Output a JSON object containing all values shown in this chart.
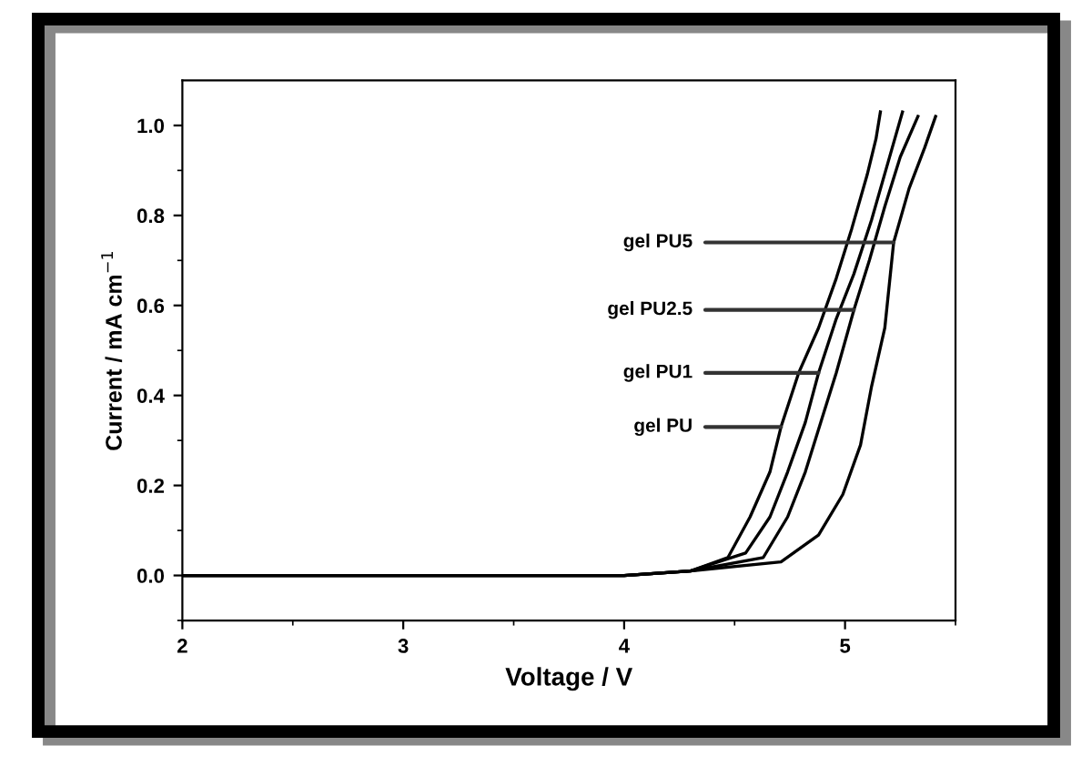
{
  "chart_data": {
    "type": "line",
    "xlabel": "Voltage / V",
    "ylabel": "Current / mA cm$^{−1}$",
    "xlim": [
      2,
      5.5
    ],
    "xticks": [
      2,
      3,
      4,
      5
    ],
    "ylim": [
      -0.1,
      1.1
    ],
    "yticks": [
      {
        "value": 0,
        "label": "0.0"
      },
      0.2,
      0.4,
      0.6,
      0.8,
      {
        "value": 1,
        "label": "1.0"
      }
    ],
    "grid": false,
    "legend": false,
    "marker": "none",
    "line_style": "solid",
    "series": [
      {
        "color": "#000000",
        "x": [
          2.0,
          4.0,
          4.3,
          4.47,
          4.57,
          4.66,
          4.71,
          4.79,
          4.88,
          4.96,
          5.03,
          5.1,
          5.14,
          5.16
        ],
        "values": [
          0,
          0,
          0.01,
          0.04,
          0.13,
          0.23,
          0.33,
          0.45,
          0.55,
          0.66,
          0.77,
          0.89,
          0.97,
          1.03
        ]
      },
      {
        "color": "#000000",
        "x": [
          2.0,
          4.0,
          4.3,
          4.55,
          4.66,
          4.74,
          4.82,
          4.88,
          4.96,
          5.04,
          5.12,
          5.19,
          5.26
        ],
        "values": [
          0,
          0,
          0.01,
          0.05,
          0.13,
          0.23,
          0.34,
          0.45,
          0.57,
          0.67,
          0.79,
          0.91,
          1.03
        ]
      },
      {
        "color": "#000000",
        "x": [
          2.0,
          4.0,
          4.3,
          4.63,
          4.74,
          4.82,
          4.89,
          4.96,
          5.04,
          5.11,
          5.18,
          5.25,
          5.33
        ],
        "values": [
          0,
          0,
          0.01,
          0.04,
          0.13,
          0.23,
          0.34,
          0.45,
          0.59,
          0.7,
          0.82,
          0.93,
          1.02
        ]
      },
      {
        "color": "#000000",
        "x": [
          2.0,
          4.0,
          4.3,
          4.71,
          4.88,
          4.99,
          5.07,
          5.12,
          5.18,
          5.22,
          5.29,
          5.36,
          5.41
        ],
        "values": [
          0,
          0,
          0.01,
          0.03,
          0.09,
          0.18,
          0.29,
          0.42,
          0.55,
          0.74,
          0.86,
          0.95,
          1.02
        ]
      }
    ],
    "annotations": [
      {
        "text": "gel PU5",
        "x": 5.22,
        "y": 0.74
      },
      {
        "text": "gel PU2.5",
        "x": 5.04,
        "y": 0.59
      },
      {
        "text": "gel PU1",
        "x": 4.88,
        "y": 0.45
      },
      {
        "text": "gel PU",
        "x": 4.71,
        "y": 0.33
      }
    ]
  }
}
